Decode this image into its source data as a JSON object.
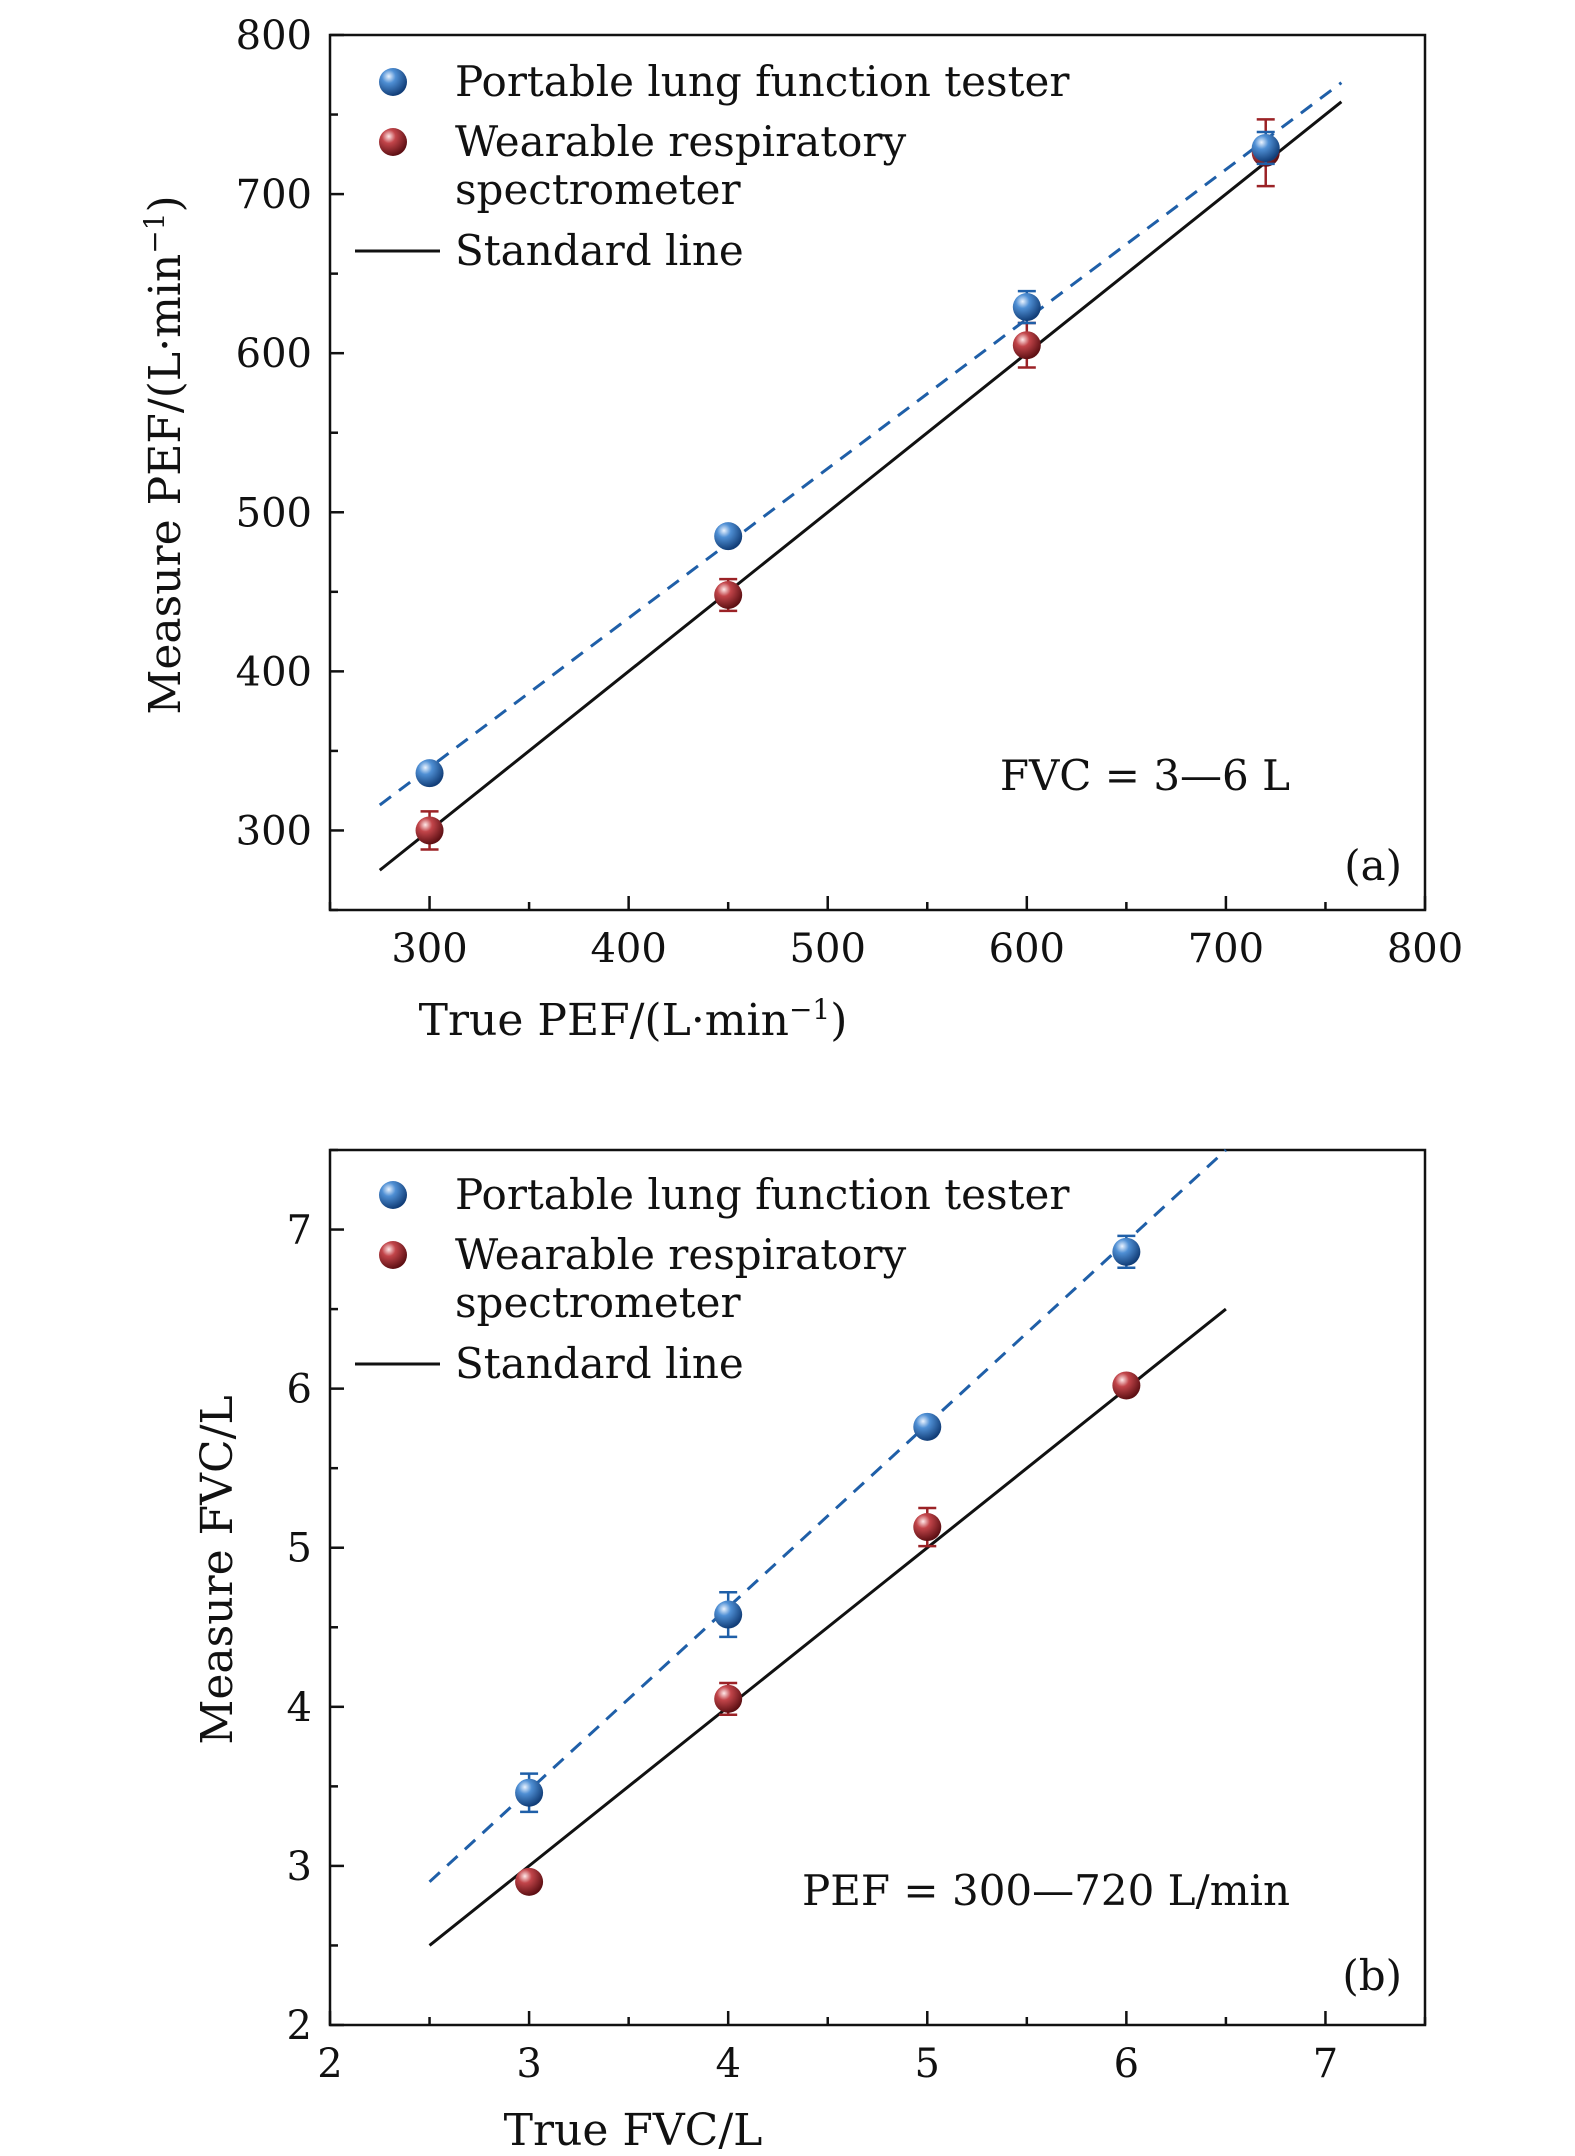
{
  "colors": {
    "portable": "#1f5fa8",
    "wearable": "#9b2226",
    "standard": "#111111",
    "axis": "#111111"
  },
  "chart_data": [
    {
      "type": "scatter",
      "panel_label": "(a)",
      "annotation": "FVC = 3—6 L",
      "xlabel": "True PEF/(L·min",
      "ylabel": "Measure PEF/(L·min",
      "unit_exponent": "−1",
      "xlim": [
        250,
        800
      ],
      "ylim": [
        250,
        800
      ],
      "xticks": [
        300,
        400,
        500,
        600,
        700,
        800
      ],
      "yticks": [
        300,
        400,
        500,
        600,
        700,
        800
      ],
      "legend": {
        "position": "top-left",
        "portable_label": "Portable lung function tester",
        "wearable_label_line1": "Wearable respiratory",
        "wearable_label_line2": "spectrometer",
        "standard_label": "Standard line"
      },
      "series": [
        {
          "name": "Portable lung function tester",
          "x": [
            300,
            450,
            600,
            720
          ],
          "y": [
            336,
            485,
            629,
            729
          ],
          "err": [
            6,
            5,
            10,
            10
          ],
          "fit": {
            "x": [
              275,
              758
            ],
            "y": [
              316,
              770
            ]
          }
        },
        {
          "name": "Wearable respiratory spectrometer",
          "x": [
            300,
            450,
            600,
            720
          ],
          "y": [
            300,
            448,
            605,
            726
          ],
          "err": [
            12,
            10,
            14,
            21
          ]
        },
        {
          "name": "Standard line",
          "x": [
            275,
            758
          ],
          "y": [
            275,
            758
          ]
        }
      ]
    },
    {
      "type": "scatter",
      "panel_label": "(b)",
      "annotation": "PEF = 300—720 L/min",
      "xlabel": "True FVC/L",
      "ylabel": "Measure FVC/L",
      "xlim": [
        2,
        7.5
      ],
      "ylim": [
        2,
        7.5
      ],
      "xticks": [
        2,
        3,
        4,
        5,
        6,
        7
      ],
      "yticks": [
        2,
        3,
        4,
        5,
        6,
        7
      ],
      "legend": {
        "position": "top-left",
        "portable_label": "Portable lung function tester",
        "wearable_label_line1": "Wearable respiratory",
        "wearable_label_line2": "spectrometer",
        "standard_label": "Standard line"
      },
      "series": [
        {
          "name": "Portable lung function tester",
          "x": [
            3,
            4,
            5,
            6
          ],
          "y": [
            3.46,
            4.58,
            5.76,
            6.86
          ],
          "err": [
            0.12,
            0.14,
            0.06,
            0.1
          ],
          "fit": {
            "x": [
              2.5,
              6.5
            ],
            "y": [
              2.9,
              7.5
            ]
          }
        },
        {
          "name": "Wearable respiratory spectrometer",
          "x": [
            3,
            4,
            5,
            6
          ],
          "y": [
            2.9,
            4.05,
            5.13,
            6.02
          ],
          "err": [
            0.03,
            0.1,
            0.12,
            0.04
          ]
        },
        {
          "name": "Standard line",
          "x": [
            2.5,
            6.5
          ],
          "y": [
            2.5,
            6.5
          ]
        }
      ]
    }
  ]
}
